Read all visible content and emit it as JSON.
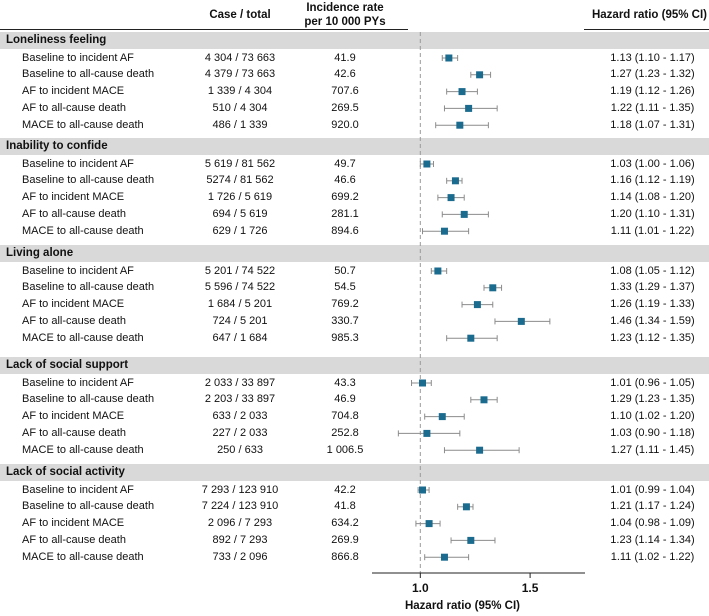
{
  "headers": {
    "case_total": "Case / total",
    "incidence_rate_line1": "Incidence rate",
    "incidence_rate_line2": "per 10 000 PYs",
    "hazard_ratio": "Hazard ratio (95% CI)"
  },
  "chart_data": {
    "type": "forest",
    "xlabel": "Hazard ratio (95% CI)",
    "xlim": [
      0.78,
      1.75
    ],
    "ticks": [
      {
        "value": 1.0,
        "label": "1.0"
      },
      {
        "value": 1.5,
        "label": "1.5"
      }
    ],
    "reference_line": 1.0,
    "marker_color": "#1b6b8f",
    "groups": [
      {
        "title": "Loneliness feeling",
        "rows": [
          {
            "label": "Baseline to incident AF",
            "case_total": "4 304 / 73 663",
            "rate": "41.9",
            "hr_text": "1.13 (1.10 - 1.17)",
            "hr": 1.13,
            "lo": 1.1,
            "hi": 1.17
          },
          {
            "label": "Baseline to all-cause death",
            "case_total": "4 379 / 73 663",
            "rate": "42.6",
            "hr_text": "1.27 (1.23 - 1.32)",
            "hr": 1.27,
            "lo": 1.23,
            "hi": 1.32
          },
          {
            "label": "AF to incident MACE",
            "case_total": "1 339 / 4 304",
            "rate": "707.6",
            "hr_text": "1.19 (1.12 - 1.26)",
            "hr": 1.19,
            "lo": 1.12,
            "hi": 1.26
          },
          {
            "label": "AF to all-cause death",
            "case_total": "510 / 4 304",
            "rate": "269.5",
            "hr_text": "1.22 (1.11 - 1.35)",
            "hr": 1.22,
            "lo": 1.11,
            "hi": 1.35
          },
          {
            "label": "MACE to all-cause death",
            "case_total": "486 / 1 339",
            "rate": "920.0",
            "hr_text": "1.18 (1.07 - 1.31)",
            "hr": 1.18,
            "lo": 1.07,
            "hi": 1.31
          }
        ]
      },
      {
        "title": "Inability to confide",
        "rows": [
          {
            "label": "Baseline to incident AF",
            "case_total": "5 619 / 81 562",
            "rate": "49.7",
            "hr_text": "1.03 (1.00 - 1.06)",
            "hr": 1.03,
            "lo": 1.0,
            "hi": 1.06
          },
          {
            "label": "Baseline to all-cause death",
            "case_total": "5274 / 81 562",
            "rate": "46.6",
            "hr_text": "1.16 (1.12 - 1.19)",
            "hr": 1.16,
            "lo": 1.12,
            "hi": 1.19
          },
          {
            "label": "AF to incident MACE",
            "case_total": "1 726 / 5 619",
            "rate": "699.2",
            "hr_text": "1.14 (1.08 - 1.20)",
            "hr": 1.14,
            "lo": 1.08,
            "hi": 1.2
          },
          {
            "label": "AF to all-cause death",
            "case_total": "694 / 5 619",
            "rate": "281.1",
            "hr_text": "1.20 (1.10 - 1.31)",
            "hr": 1.2,
            "lo": 1.1,
            "hi": 1.31
          },
          {
            "label": "MACE to all-cause death",
            "case_total": "629 / 1 726",
            "rate": "894.6",
            "hr_text": "1.11 (1.01 - 1.22)",
            "hr": 1.11,
            "lo": 1.01,
            "hi": 1.22
          }
        ]
      },
      {
        "title": "Living alone",
        "rows": [
          {
            "label": "Baseline to incident AF",
            "case_total": "5 201 / 74 522",
            "rate": "50.7",
            "hr_text": "1.08 (1.05 - 1.12)",
            "hr": 1.08,
            "lo": 1.05,
            "hi": 1.12
          },
          {
            "label": "Baseline to all-cause death",
            "case_total": "5 596 / 74 522",
            "rate": "54.5",
            "hr_text": "1.33 (1.29 - 1.37)",
            "hr": 1.33,
            "lo": 1.29,
            "hi": 1.37
          },
          {
            "label": "AF to incident MACE",
            "case_total": "1 684 / 5 201",
            "rate": "769.2",
            "hr_text": "1.26 (1.19 - 1.33)",
            "hr": 1.26,
            "lo": 1.19,
            "hi": 1.33
          },
          {
            "label": "AF to all-cause death",
            "case_total": "724 / 5 201",
            "rate": "330.7",
            "hr_text": "1.46 (1.34 - 1.59)",
            "hr": 1.46,
            "lo": 1.34,
            "hi": 1.59
          },
          {
            "label": "MACE to all-cause death",
            "case_total": "647 / 1 684",
            "rate": "985.3",
            "hr_text": "1.23 (1.12 - 1.35)",
            "hr": 1.23,
            "lo": 1.12,
            "hi": 1.35
          }
        ]
      },
      {
        "title": "Lack of social support",
        "rows": [
          {
            "label": "Baseline to incident AF",
            "case_total": "2 033 / 33 897",
            "rate": "43.3",
            "hr_text": "1.01 (0.96 - 1.05)",
            "hr": 1.01,
            "lo": 0.96,
            "hi": 1.05
          },
          {
            "label": "Baseline to all-cause death",
            "case_total": "2 203 / 33 897",
            "rate": "46.9",
            "hr_text": "1.29 (1.23 - 1.35)",
            "hr": 1.29,
            "lo": 1.23,
            "hi": 1.35
          },
          {
            "label": "AF to incident MACE",
            "case_total": "633 / 2 033",
            "rate": "704.8",
            "hr_text": "1.10 (1.02 - 1.20)",
            "hr": 1.1,
            "lo": 1.02,
            "hi": 1.2
          },
          {
            "label": "AF to all-cause death",
            "case_total": "227 / 2 033",
            "rate": "252.8",
            "hr_text": "1.03 (0.90 - 1.18)",
            "hr": 1.03,
            "lo": 0.9,
            "hi": 1.18
          },
          {
            "label": "MACE to all-cause death",
            "case_total": "250 / 633",
            "rate": "1 006.5",
            "hr_text": "1.27 (1.11 - 1.45)",
            "hr": 1.27,
            "lo": 1.11,
            "hi": 1.45
          }
        ]
      },
      {
        "title": "Lack of social activity",
        "rows": [
          {
            "label": "Baseline to incident AF",
            "case_total": "7 293 / 123 910",
            "rate": "42.2",
            "hr_text": "1.01 (0.99 - 1.04)",
            "hr": 1.01,
            "lo": 0.99,
            "hi": 1.04
          },
          {
            "label": "Baseline to all-cause death",
            "case_total": "7 224 / 123 910",
            "rate": "41.8",
            "hr_text": "1.21 (1.17 - 1.24)",
            "hr": 1.21,
            "lo": 1.17,
            "hi": 1.24
          },
          {
            "label": "AF to incident MACE",
            "case_total": "2 096 / 7 293",
            "rate": "634.2",
            "hr_text": "1.04 (0.98 - 1.09)",
            "hr": 1.04,
            "lo": 0.98,
            "hi": 1.09
          },
          {
            "label": "AF to all-cause death",
            "case_total": "892 / 7 293",
            "rate": "269.9",
            "hr_text": "1.23 (1.14 - 1.34)",
            "hr": 1.23,
            "lo": 1.14,
            "hi": 1.34
          },
          {
            "label": "MACE to all-cause death",
            "case_total": "733 / 2 096",
            "rate": "866.8",
            "hr_text": "1.11 (1.02 - 1.22)",
            "hr": 1.11,
            "lo": 1.02,
            "hi": 1.22
          }
        ]
      }
    ]
  }
}
